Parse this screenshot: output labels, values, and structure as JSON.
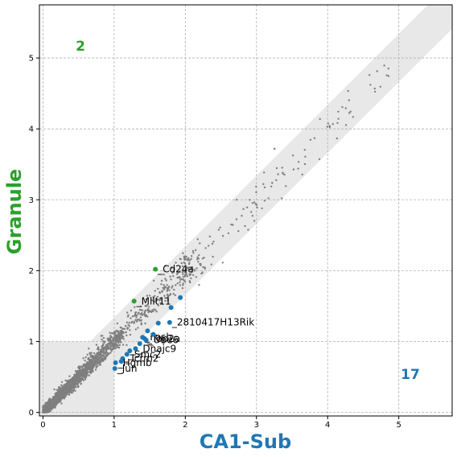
{
  "chart_data": {
    "type": "scatter",
    "xlabel": "CA1-Sub",
    "ylabel": "Granule",
    "xlim": [
      -0.05,
      5.75
    ],
    "ylim": [
      -0.05,
      5.75
    ],
    "x_ticks": [
      0,
      1,
      2,
      3,
      4,
      5
    ],
    "y_ticks": [
      0,
      1,
      2,
      3,
      4,
      5
    ],
    "grid": true,
    "colors": {
      "background_points": "#7f7f7f",
      "granule": "#2ca02c",
      "ca1_sub": "#1f77b4",
      "band": "#e8e8e8",
      "grid": "#b0b0b0"
    },
    "counts": {
      "granule_label": "2",
      "ca1_sub_label": "17"
    },
    "highlighted": {
      "granule": [
        {
          "gene": "Cd24a",
          "x": 1.58,
          "y": 2.02
        },
        {
          "gene": "Mllt11",
          "x": 1.28,
          "y": 1.57
        }
      ],
      "ca1_sub": [
        {
          "gene": "2810417H13Rik",
          "x": 1.78,
          "y": 1.27
        },
        {
          "gene": "",
          "x": 1.93,
          "y": 1.62
        },
        {
          "gene": "",
          "x": 1.8,
          "y": 1.48
        },
        {
          "gene": "",
          "x": 1.62,
          "y": 1.26
        },
        {
          "gene": "",
          "x": 1.47,
          "y": 1.15
        },
        {
          "gene": "Fosb",
          "x": 1.4,
          "y": 1.06
        },
        {
          "gene": "Top2a",
          "x": 1.43,
          "y": 1.04
        },
        {
          "gene": "Ube6",
          "x": 1.45,
          "y": 1.02
        },
        {
          "gene": "Dnajc9",
          "x": 1.3,
          "y": 0.9
        },
        {
          "gene": "",
          "x": 1.36,
          "y": 0.97
        },
        {
          "gene": "Smc2",
          "x": 1.18,
          "y": 0.82
        },
        {
          "gene": "Tcrm2",
          "x": 1.12,
          "y": 0.76
        },
        {
          "gene": "Hgmb",
          "x": 1.02,
          "y": 0.7
        },
        {
          "gene": "Jun",
          "x": 1.01,
          "y": 0.62
        },
        {
          "gene": "",
          "x": 1.1,
          "y": 0.72
        },
        {
          "gene": "",
          "x": 1.22,
          "y": 0.87
        },
        {
          "gene": "",
          "x": 1.55,
          "y": 1.1
        }
      ]
    }
  }
}
